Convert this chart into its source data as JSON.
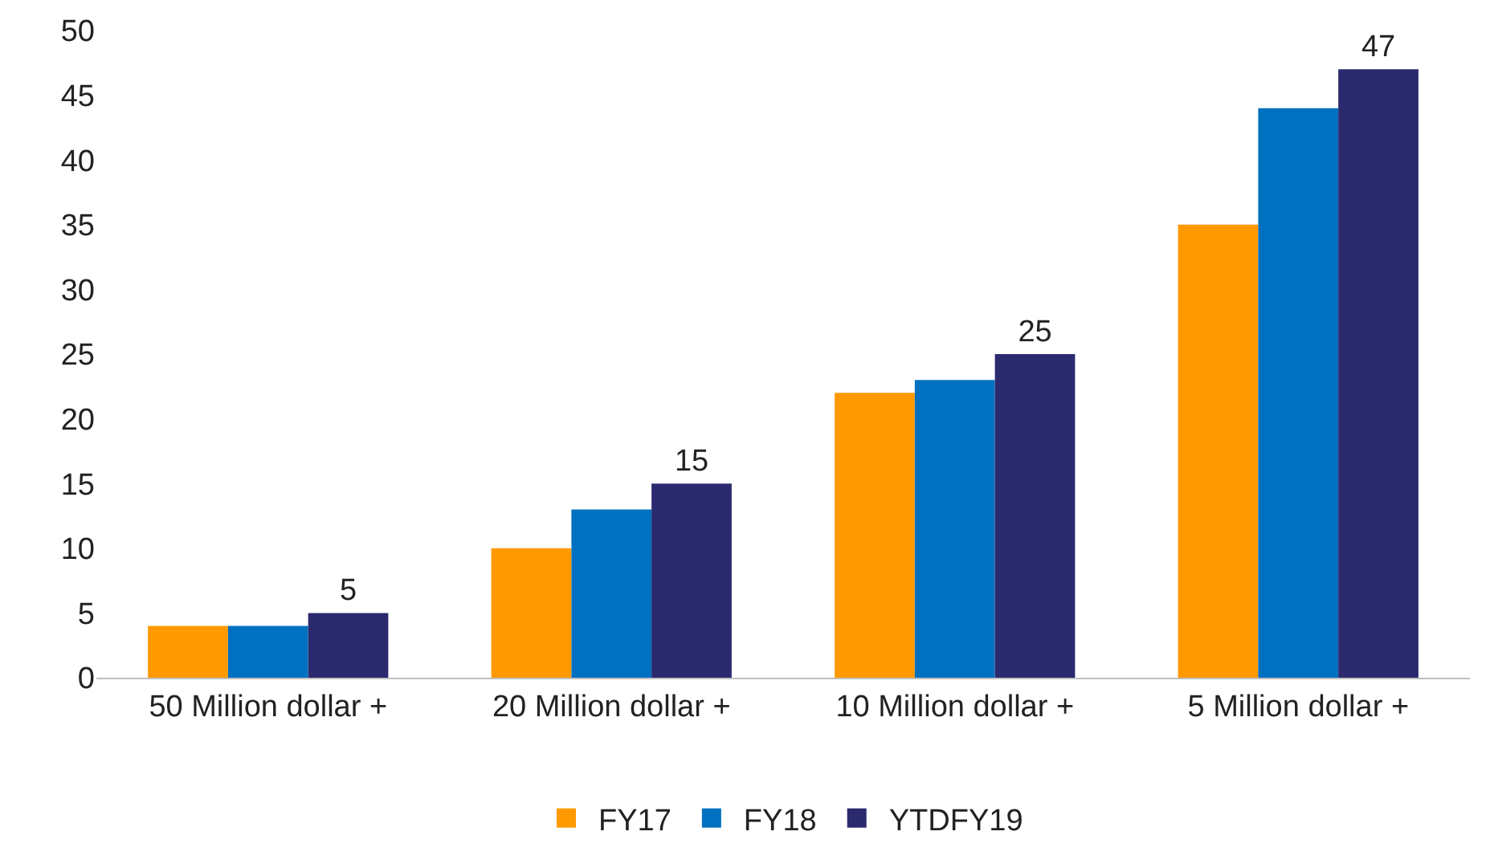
{
  "chart_data": {
    "type": "bar",
    "categories": [
      "50 Million dollar +",
      "20 Million dollar +",
      "10 Million dollar +",
      "5 Million dollar +"
    ],
    "series": [
      {
        "name": "FY17",
        "color": "#ff9900",
        "values": [
          4,
          10,
          22,
          35
        ]
      },
      {
        "name": "FY18",
        "color": "#0070c0",
        "values": [
          4,
          13,
          23,
          44
        ]
      },
      {
        "name": "YTDFY19",
        "color": "#2b2a6f",
        "values": [
          5,
          15,
          25,
          47
        ],
        "value_labels": [
          "5",
          "15",
          "25",
          "47"
        ]
      }
    ],
    "ylim": [
      0,
      50
    ],
    "yticks": [
      0,
      5,
      10,
      15,
      20,
      25,
      30,
      35,
      40,
      45,
      50
    ],
    "grid": false,
    "legend": "bottom"
  }
}
